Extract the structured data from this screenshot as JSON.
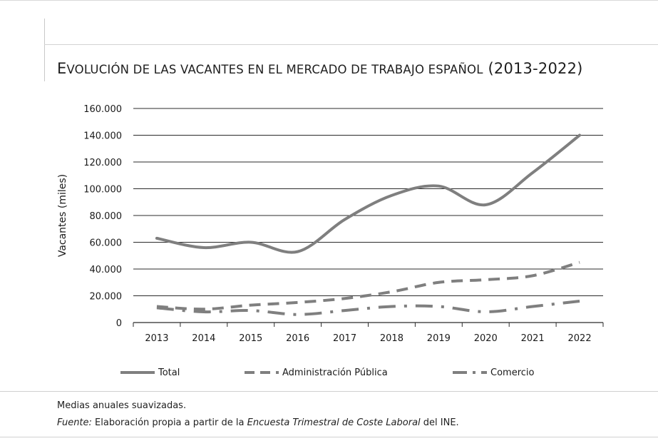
{
  "title": {
    "first": "E",
    "rest": "volución de las vacantes en el mercado de trabajo español",
    "years": "(2013-2022)"
  },
  "chart_data": {
    "type": "line",
    "x": [
      "2013",
      "2014",
      "2015",
      "2016",
      "2017",
      "2018",
      "2019",
      "2020",
      "2021",
      "2022"
    ],
    "ylabel": "Vacantes (miles)",
    "xlabel": "",
    "ylim": [
      0,
      160000
    ],
    "yticks": [
      0,
      20000,
      40000,
      60000,
      80000,
      100000,
      120000,
      140000,
      160000
    ],
    "ytick_labels": [
      "0",
      "20.000",
      "40.000",
      "60.000",
      "80.000",
      "100.000",
      "120.000",
      "140.000",
      "160.000"
    ],
    "grid": "horizontal",
    "legend_position": "bottom",
    "series": [
      {
        "name": "Total",
        "style": "solid",
        "values": [
          63000,
          56000,
          60000,
          53000,
          77000,
          95000,
          102000,
          88000,
          112000,
          140000
        ]
      },
      {
        "name": "Administración Pública",
        "style": "dashed",
        "values": [
          12000,
          10000,
          13000,
          15000,
          18000,
          23000,
          30000,
          32000,
          35000,
          45000
        ]
      },
      {
        "name": "Comercio",
        "style": "dashdot",
        "values": [
          11000,
          8000,
          9000,
          6000,
          9000,
          12000,
          12000,
          8000,
          12000,
          16000
        ]
      }
    ],
    "colors": {
      "line": "#7f7f7f",
      "grid": "#2b2b2b"
    }
  },
  "notes": {
    "line1": "Medias anuales suavizadas.",
    "source_label": "Fuente:",
    "source_text_1": " Elaboración propia a partir de la ",
    "source_italic": "Encuesta Trimestral de Coste Laboral",
    "source_text_2": " del INE."
  }
}
